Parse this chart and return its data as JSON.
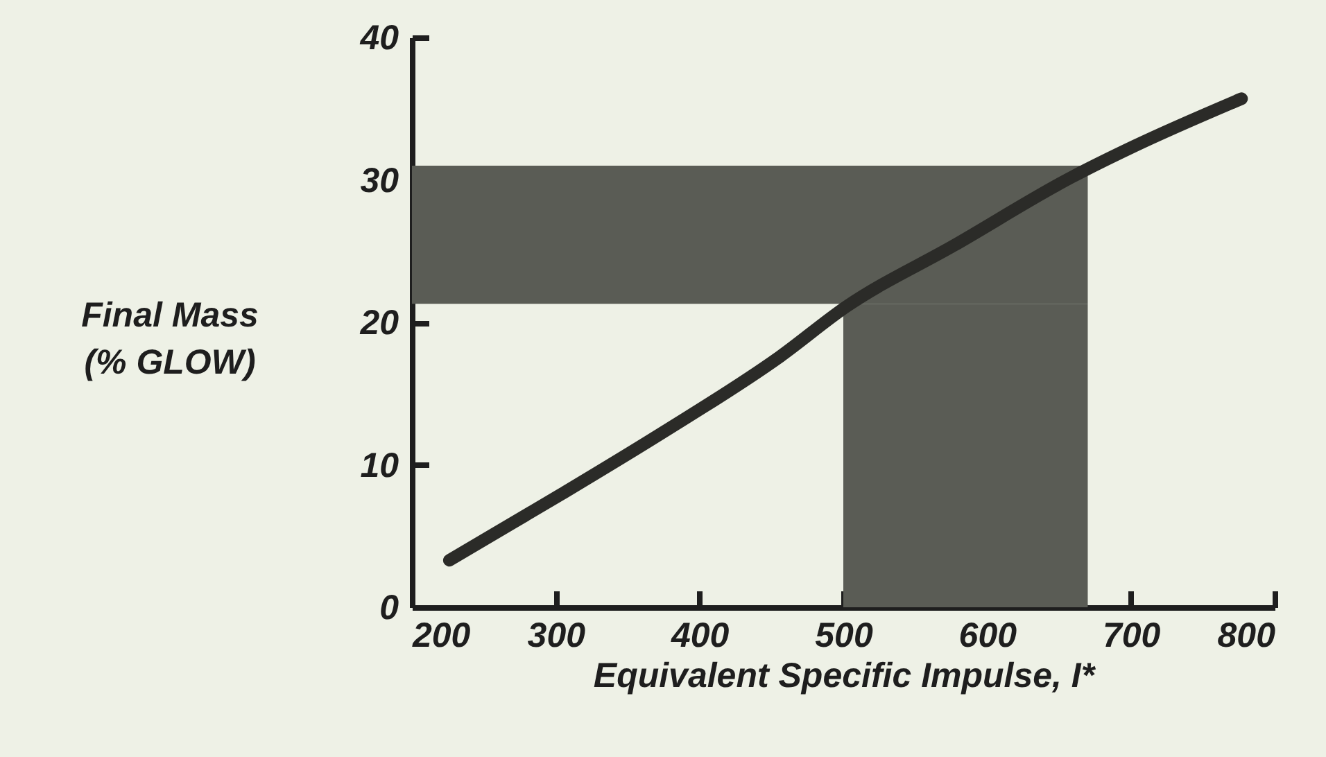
{
  "chart_data": {
    "type": "line",
    "xlabel": "Equivalent Specific Impulse, I*",
    "ylabel": "Final Mass\n(% GLOW)",
    "x": [
      226,
      305,
      375,
      456,
      502,
      577,
      659,
      703,
      777
    ],
    "series": [
      {
        "color": "#2b2b28",
        "values": [
          3.3,
          8.0,
          12.3,
          17.6,
          21.1,
          25.4,
          30.2,
          32.4,
          35.7
        ]
      }
    ],
    "xlim": [
      200,
      800
    ],
    "xticks": [
      200,
      300,
      400,
      500,
      600,
      700,
      800
    ],
    "ylim": [
      0,
      40
    ],
    "yticks": [
      0,
      10,
      20,
      30,
      40
    ],
    "bands": [
      {
        "axis": "y",
        "from": 21.3,
        "to": 31.0,
        "color": "#5a5c55"
      },
      {
        "axis": "x",
        "from": 500,
        "to": 670,
        "color": "#5a5c55"
      }
    ],
    "grid": false,
    "marker": "none",
    "line_style": "solid"
  }
}
